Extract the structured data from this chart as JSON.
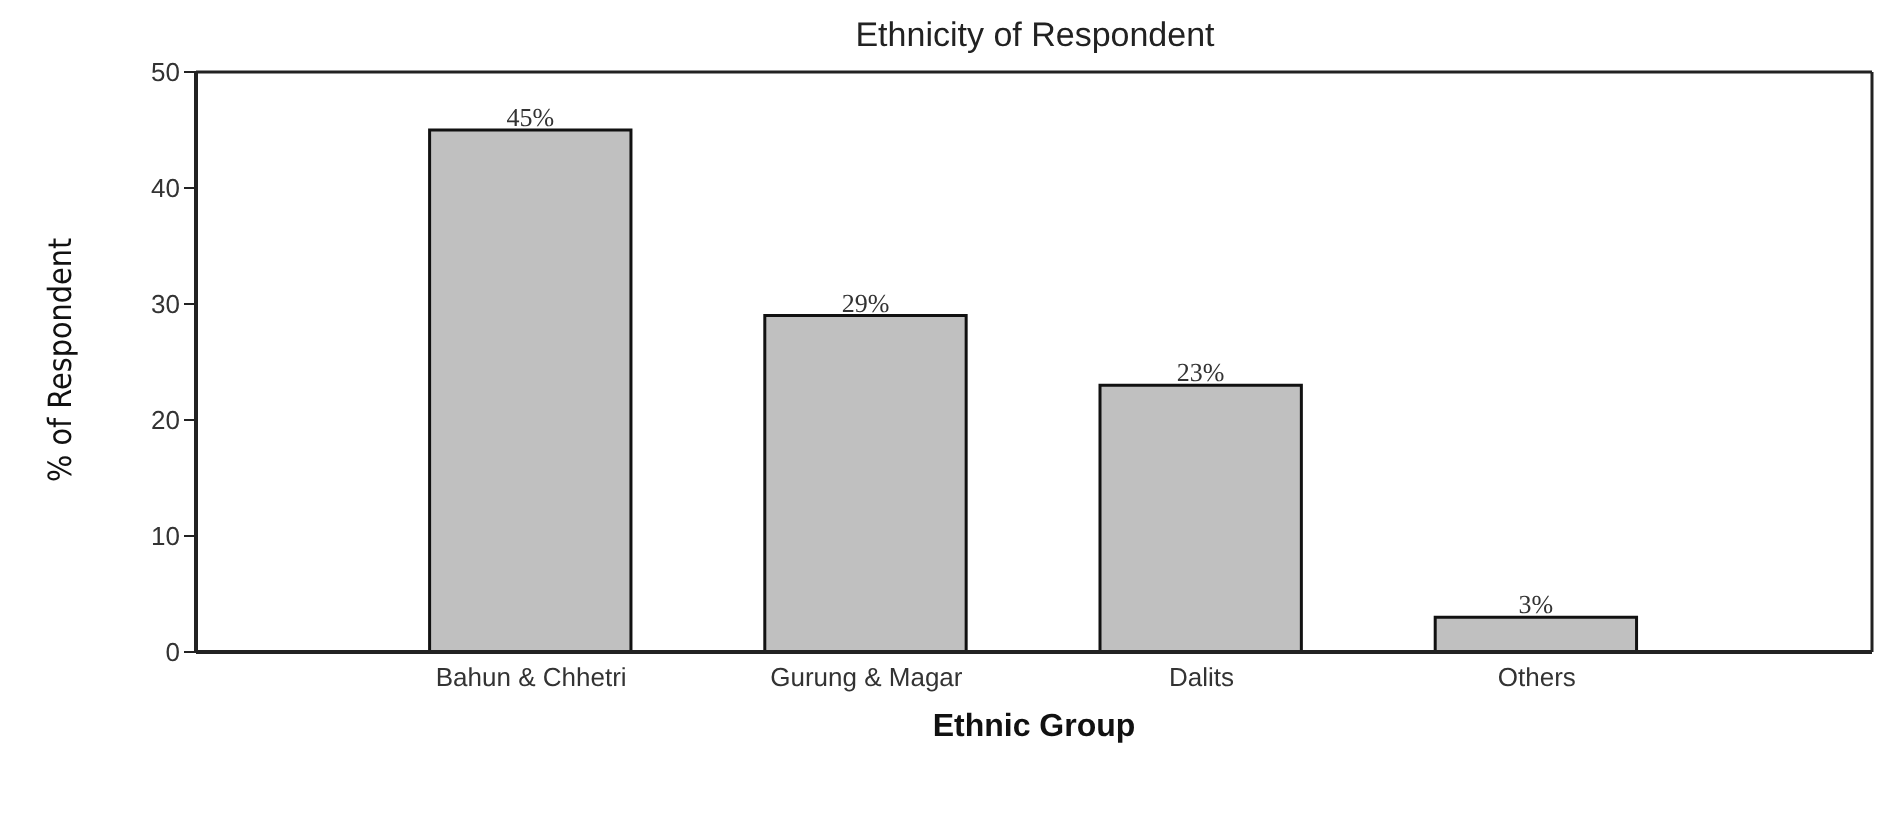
{
  "chart_data": {
    "type": "bar",
    "title": "Ethnicity of Respondent",
    "xlabel": "Ethnic Group",
    "ylabel": "% of Respondent",
    "categories": [
      "Bahun & Chhetri",
      "Gurung & Magar",
      "Dalits",
      "Others"
    ],
    "values": [
      45,
      29,
      23,
      3
    ],
    "value_labels": [
      "45%",
      "29%",
      "23%",
      "3%"
    ],
    "color": "#c0c0c0",
    "ylim": [
      0,
      50
    ],
    "yticks": [
      0,
      10,
      20,
      30,
      40,
      50
    ],
    "grid": false
  }
}
